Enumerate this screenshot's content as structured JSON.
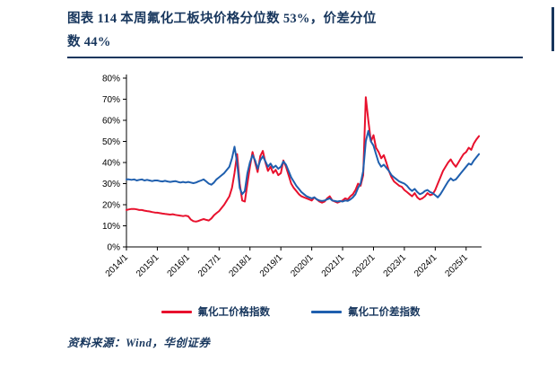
{
  "figure": {
    "title_line1": "图表  114   本周氟化工板块价格分位数 53%，价差分位",
    "title_line2": "数 44%"
  },
  "source": {
    "text": "资料来源：Wind，华创证券"
  },
  "colors": {
    "navy": "#17365D",
    "red": "#E8112D",
    "blue": "#1F5FAE"
  },
  "chart_data": {
    "type": "line",
    "title": "本周氟化工板块价格分位数53%，价差分位数44%",
    "xlabel": "",
    "ylabel": "",
    "x_start": 2014.0,
    "x_end": 2025.5,
    "ylim": [
      0,
      80
    ],
    "yticks": [
      "0%",
      "10%",
      "20%",
      "30%",
      "40%",
      "50%",
      "60%",
      "70%",
      "80%"
    ],
    "xticks": [
      "2014/1",
      "2015/1",
      "2016/1",
      "2017/1",
      "2018/1",
      "2019/1",
      "2020/1",
      "2021/1",
      "2022/1",
      "2023/1",
      "2024/1",
      "2025/1"
    ],
    "grid": false,
    "legend_position": "bottom",
    "series": [
      {
        "name": "氟化工价格指数",
        "color": "#E8112D",
        "values": [
          17.5,
          17.8,
          18.0,
          18.0,
          17.8,
          17.5,
          17.5,
          17.2,
          17.0,
          16.8,
          16.5,
          16.3,
          16.2,
          16.0,
          15.8,
          15.6,
          15.5,
          15.3,
          15.5,
          15.2,
          15.0,
          14.8,
          14.6,
          14.8,
          14.5,
          13.0,
          12.2,
          12.0,
          12.3,
          12.8,
          13.2,
          12.8,
          12.5,
          13.5,
          15.0,
          16.0,
          17.0,
          18.5,
          20.0,
          22.0,
          24.0,
          28.0,
          35.0,
          44.0,
          30.0,
          22.0,
          21.5,
          30.0,
          38.0,
          45.0,
          40.0,
          35.5,
          43.0,
          45.5,
          40.0,
          36.0,
          38.0,
          35.0,
          36.5,
          34.0,
          35.0,
          41.0,
          38.0,
          34.0,
          30.0,
          28.0,
          26.5,
          25.0,
          24.0,
          23.5,
          23.0,
          22.5,
          22.0,
          23.5,
          22.5,
          21.5,
          21.0,
          21.5,
          23.0,
          24.0,
          22.0,
          21.5,
          21.0,
          21.5,
          22.0,
          23.0,
          22.5,
          24.0,
          25.0,
          27.0,
          30.0,
          29.0,
          34.0,
          71.0,
          60.0,
          50.0,
          53.0,
          47.0,
          45.0,
          42.0,
          43.5,
          40.0,
          36.0,
          33.0,
          31.0,
          30.0,
          29.0,
          28.5,
          27.0,
          26.0,
          25.0,
          24.0,
          25.5,
          23.5,
          22.5,
          23.0,
          24.0,
          25.5,
          24.5,
          25.0,
          27.0,
          30.0,
          33.0,
          36.0,
          38.0,
          40.0,
          41.5,
          39.5,
          38.0,
          40.0,
          42.0,
          44.0,
          45.0,
          47.0,
          46.0,
          49.0,
          51.0,
          52.5
        ]
      },
      {
        "name": "氟化工价差指数",
        "color": "#1F5FAE",
        "values": [
          32.0,
          32.0,
          31.8,
          32.0,
          31.5,
          31.8,
          32.0,
          31.5,
          31.8,
          31.5,
          31.2,
          31.5,
          31.5,
          31.2,
          31.0,
          31.3,
          31.0,
          30.8,
          31.0,
          31.2,
          30.8,
          30.5,
          30.8,
          30.5,
          30.8,
          30.5,
          30.2,
          30.5,
          31.0,
          31.5,
          32.0,
          31.0,
          30.0,
          29.5,
          30.5,
          32.0,
          33.0,
          34.0,
          35.0,
          36.5,
          38.0,
          42.0,
          47.5,
          40.0,
          28.0,
          25.0,
          26.5,
          35.0,
          40.0,
          43.5,
          41.0,
          37.0,
          41.0,
          43.0,
          40.5,
          38.0,
          39.5,
          37.5,
          38.5,
          37.0,
          38.0,
          40.5,
          39.0,
          36.0,
          33.0,
          31.0,
          29.0,
          27.5,
          26.0,
          25.0,
          24.0,
          23.5,
          23.0,
          23.5,
          22.5,
          22.0,
          21.8,
          22.0,
          22.5,
          23.0,
          22.0,
          21.8,
          21.5,
          21.8,
          21.5,
          22.0,
          21.8,
          22.5,
          23.5,
          25.0,
          28.0,
          30.0,
          36.0,
          50.0,
          55.0,
          50.0,
          48.0,
          44.0,
          40.0,
          38.0,
          39.0,
          37.5,
          36.0,
          34.0,
          33.0,
          32.0,
          31.0,
          30.5,
          30.0,
          29.0,
          27.5,
          26.5,
          27.5,
          26.0,
          25.0,
          25.5,
          26.5,
          27.0,
          26.0,
          25.5,
          24.5,
          23.5,
          25.0,
          27.0,
          29.0,
          31.0,
          32.5,
          31.5,
          32.0,
          33.5,
          35.0,
          36.5,
          38.0,
          39.5,
          39.0,
          41.0,
          42.5,
          44.0
        ]
      }
    ]
  }
}
